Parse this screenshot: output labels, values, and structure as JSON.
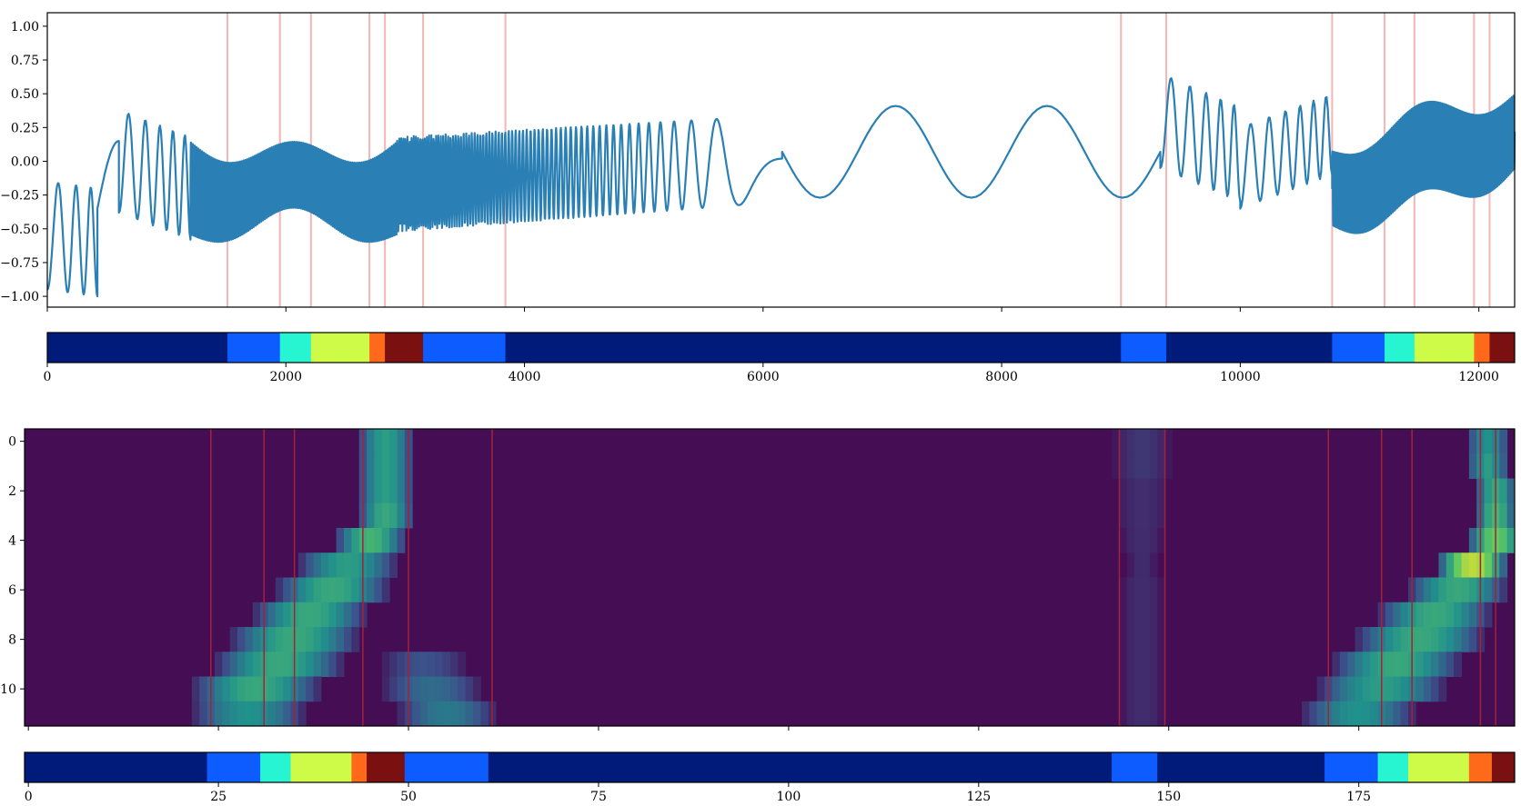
{
  "chart_data": [
    {
      "type": "line",
      "x_range": [
        0,
        12300
      ],
      "ylim": [
        -1.08,
        1.1
      ],
      "yticks": [
        -1.0,
        -0.75,
        -0.5,
        -0.25,
        0.0,
        0.25,
        0.5,
        0.75,
        1.0
      ],
      "ytick_labels": [
        "−1.00",
        "−0.75",
        "−0.50",
        "−0.25",
        "0.00",
        "0.25",
        "0.50",
        "0.75",
        "1.00"
      ],
      "xticks": [
        0,
        2000,
        4000,
        6000,
        8000,
        10000,
        12000
      ],
      "line_color": "#2a7fb4",
      "boundary_color": "#f5b5b5",
      "boundaries": [
        1510,
        1950,
        2210,
        2700,
        2830,
        3150,
        3840,
        9000,
        9380,
        10770,
        11210,
        11460,
        11960,
        12090
      ],
      "segments": [
        {
          "x": [
            0,
            420
          ],
          "kind": "chirp",
          "cycles": 3,
          "amp": 0.4,
          "base_start": -0.55,
          "base_end": -0.6
        },
        {
          "x": [
            420,
            600
          ],
          "kind": "ramp",
          "from": -0.35,
          "to": 0.15
        },
        {
          "x": [
            600,
            1200
          ],
          "kind": "chirp",
          "cycles": 5,
          "amp": 0.38,
          "base_start": 0.0,
          "base_end": -0.2
        },
        {
          "x": [
            1200,
            2930
          ],
          "kind": "envelope_osc",
          "cycles": 110,
          "amp_start": 0.35,
          "amp_peak": 0.25,
          "amp_end": 0.35
        },
        {
          "x": [
            2930,
            6160
          ],
          "kind": "chirp_desc",
          "cycles": 75,
          "amp_start": 0.35,
          "amp_end": 0.32,
          "base_start": -0.17,
          "base_end": 0.02
        },
        {
          "x": [
            6160,
            9330
          ],
          "kind": "sine",
          "cycles": 2.5,
          "amp": 0.34,
          "base": 0.07
        },
        {
          "x": [
            9330,
            10000
          ],
          "kind": "chirp",
          "cycles": 5,
          "amp": 0.35,
          "base_start": 0.3,
          "base_end": 0.05
        },
        {
          "x": [
            10000,
            10770
          ],
          "kind": "chirp",
          "cycles": 6,
          "amp": 0.3,
          "base_start": -0.05,
          "base_end": 0.2
        },
        {
          "x": [
            10770,
            12300
          ],
          "kind": "envelope_osc",
          "cycles": 120,
          "amp_start": 0.28,
          "amp_peak": 0.33,
          "amp_end": 0.35
        }
      ]
    },
    {
      "type": "bar",
      "x_range": [
        0,
        12300
      ],
      "xticks": [
        0,
        2000,
        4000,
        6000,
        8000,
        10000,
        12000
      ],
      "xtick_labels": [
        "0",
        "2000",
        "4000",
        "6000",
        "8000",
        "10000",
        "12000"
      ],
      "segments": [
        {
          "start": 0,
          "end": 1510,
          "color": "#001b7a"
        },
        {
          "start": 1510,
          "end": 1950,
          "color": "#0d5cff"
        },
        {
          "start": 1950,
          "end": 2210,
          "color": "#27f5d2"
        },
        {
          "start": 2210,
          "end": 2700,
          "color": "#cdfb47"
        },
        {
          "start": 2700,
          "end": 2830,
          "color": "#ff6a1a"
        },
        {
          "start": 2830,
          "end": 3150,
          "color": "#7a1010"
        },
        {
          "start": 3150,
          "end": 3840,
          "color": "#0d5cff"
        },
        {
          "start": 3840,
          "end": 9000,
          "color": "#001b7a"
        },
        {
          "start": 9000,
          "end": 9380,
          "color": "#0d5cff"
        },
        {
          "start": 9380,
          "end": 10770,
          "color": "#001b7a"
        },
        {
          "start": 10770,
          "end": 11210,
          "color": "#0d5cff"
        },
        {
          "start": 11210,
          "end": 11460,
          "color": "#27f5d2"
        },
        {
          "start": 11460,
          "end": 11960,
          "color": "#cdfb47"
        },
        {
          "start": 11960,
          "end": 12090,
          "color": "#ff6a1a"
        },
        {
          "start": 12090,
          "end": 12300,
          "color": "#7a1010"
        }
      ]
    },
    {
      "type": "heatmap",
      "x_range": [
        -0.5,
        195.5
      ],
      "rows": 12,
      "xticks": [
        0,
        25,
        50,
        75,
        100,
        125,
        150,
        175
      ],
      "ytick_values": [
        0,
        2,
        4,
        6,
        8,
        10
      ],
      "ytick_labels": [
        "0",
        "2",
        "4",
        "6",
        "8",
        "10"
      ],
      "background_color": "#440d54",
      "boundary_color": "#a3223a",
      "boundaries": [
        24,
        31,
        35,
        44,
        50,
        61,
        143.5,
        149.5,
        171,
        178,
        182,
        191,
        193
      ],
      "row_blobs": [
        [
          {
            "c": 47,
            "w": 4,
            "v": 0.55
          },
          {
            "c": 146.5,
            "w": 4,
            "v": 0.15
          },
          {
            "c": 192,
            "w": 3,
            "v": 0.5
          }
        ],
        [
          {
            "c": 47,
            "w": 4,
            "v": 0.55
          },
          {
            "c": 146.5,
            "w": 4,
            "v": 0.15
          },
          {
            "c": 192,
            "w": 3,
            "v": 0.55
          }
        ],
        [
          {
            "c": 47,
            "w": 4,
            "v": 0.55
          },
          {
            "c": 146.5,
            "w": 4,
            "v": 0.12
          },
          {
            "c": 193,
            "w": 3,
            "v": 0.6
          }
        ],
        [
          {
            "c": 47,
            "w": 4,
            "v": 0.6
          },
          {
            "c": 146.5,
            "w": 4,
            "v": 0.12
          },
          {
            "c": 193,
            "w": 3,
            "v": 0.65
          }
        ],
        [
          {
            "c": 45,
            "w": 5,
            "v": 0.65
          },
          {
            "c": 146.5,
            "w": 3,
            "v": 0.12
          },
          {
            "c": 193,
            "w": 4,
            "v": 0.75
          }
        ],
        [
          {
            "c": 42,
            "w": 7,
            "v": 0.55
          },
          {
            "c": 146.5,
            "w": 2,
            "v": 0.12
          },
          {
            "c": 190,
            "w": 5,
            "v": 0.9
          }
        ],
        [
          {
            "c": 40,
            "w": 8,
            "v": 0.6
          },
          {
            "c": 146.5,
            "w": 3,
            "v": 0.12
          },
          {
            "c": 188,
            "w": 7,
            "v": 0.6
          }
        ],
        [
          {
            "c": 37,
            "w": 8,
            "v": 0.6
          },
          {
            "c": 146.5,
            "w": 3,
            "v": 0.12
          },
          {
            "c": 185,
            "w": 8,
            "v": 0.6
          }
        ],
        [
          {
            "c": 35,
            "w": 9,
            "v": 0.6
          },
          {
            "c": 146.5,
            "w": 3,
            "v": 0.12
          },
          {
            "c": 183,
            "w": 9,
            "v": 0.6
          }
        ],
        [
          {
            "c": 33,
            "w": 9,
            "v": 0.6
          },
          {
            "c": 52,
            "w": 6,
            "v": 0.25
          },
          {
            "c": 146.5,
            "w": 3,
            "v": 0.12
          },
          {
            "c": 180,
            "w": 9,
            "v": 0.6
          }
        ],
        [
          {
            "c": 30,
            "w": 9,
            "v": 0.6
          },
          {
            "c": 53,
            "w": 7,
            "v": 0.35
          },
          {
            "c": 146.5,
            "w": 3,
            "v": 0.12
          },
          {
            "c": 178,
            "w": 9,
            "v": 0.55
          }
        ],
        [
          {
            "c": 29,
            "w": 8,
            "v": 0.5
          },
          {
            "c": 55,
            "w": 7,
            "v": 0.4
          },
          {
            "c": 146.5,
            "w": 3,
            "v": 0.12
          },
          {
            "c": 175,
            "w": 8,
            "v": 0.5
          }
        ]
      ]
    },
    {
      "type": "bar",
      "x_range": [
        -0.5,
        195.5
      ],
      "xticks": [
        0,
        25,
        50,
        75,
        100,
        125,
        150,
        175
      ],
      "xtick_labels": [
        "0",
        "25",
        "50",
        "75",
        "100",
        "125",
        "150",
        "175"
      ],
      "segments": [
        {
          "start": -0.5,
          "end": 23.5,
          "color": "#001b7a"
        },
        {
          "start": 23.5,
          "end": 30.5,
          "color": "#0d5cff"
        },
        {
          "start": 30.5,
          "end": 34.5,
          "color": "#27f5d2"
        },
        {
          "start": 34.5,
          "end": 42.5,
          "color": "#cdfb47"
        },
        {
          "start": 42.5,
          "end": 44.5,
          "color": "#ff6a1a"
        },
        {
          "start": 44.5,
          "end": 49.5,
          "color": "#7a1010"
        },
        {
          "start": 49.5,
          "end": 60.5,
          "color": "#0d5cff"
        },
        {
          "start": 60.5,
          "end": 142.5,
          "color": "#001b7a"
        },
        {
          "start": 142.5,
          "end": 148.5,
          "color": "#0d5cff"
        },
        {
          "start": 148.5,
          "end": 170.5,
          "color": "#001b7a"
        },
        {
          "start": 170.5,
          "end": 177.5,
          "color": "#0d5cff"
        },
        {
          "start": 177.5,
          "end": 181.5,
          "color": "#27f5d2"
        },
        {
          "start": 181.5,
          "end": 189.5,
          "color": "#cdfb47"
        },
        {
          "start": 189.5,
          "end": 192.5,
          "color": "#ff6a1a"
        },
        {
          "start": 192.5,
          "end": 195.5,
          "color": "#7a1010"
        }
      ]
    }
  ]
}
